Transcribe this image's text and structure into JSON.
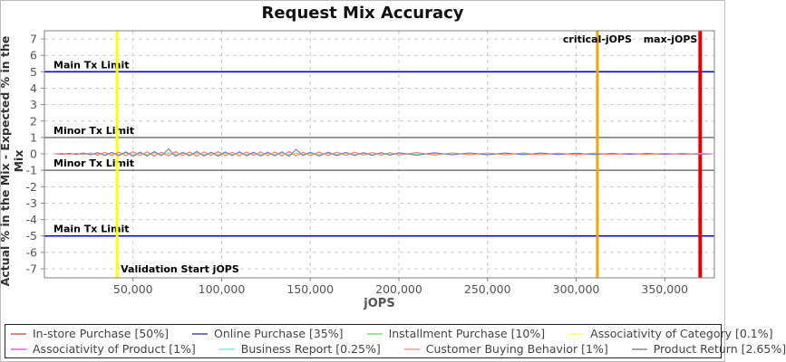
{
  "chart_data": {
    "type": "line",
    "title": "Request Mix Accuracy",
    "xlabel": "jOPS",
    "ylabel": "Actual % in the Mix - Expected % in the Mix",
    "xlim": [
      0,
      378000
    ],
    "ylim": [
      -7.55,
      7.5
    ],
    "grid": true,
    "legend_position": "bottom",
    "x_ticks": [
      {
        "value": 50000,
        "label": "50,000"
      },
      {
        "value": 100000,
        "label": "100,000"
      },
      {
        "value": 150000,
        "label": "150,000"
      },
      {
        "value": 200000,
        "label": "200,000"
      },
      {
        "value": 250000,
        "label": "250,000"
      },
      {
        "value": 300000,
        "label": "300,000"
      },
      {
        "value": 350000,
        "label": "350,000"
      }
    ],
    "y_ticks": [
      7,
      6,
      5,
      4,
      3,
      2,
      1,
      0,
      -1,
      -2,
      -3,
      -4,
      -5,
      -6,
      -7
    ],
    "h_markers": [
      {
        "label": "Main Tx Limit",
        "y": 5,
        "color": "#0000cc"
      },
      {
        "label": "Minor Tx Limit",
        "y": 1,
        "color": "#808080"
      },
      {
        "label": "Minor Tx Limit",
        "y": -1,
        "color": "#808080"
      },
      {
        "label": "Main Tx Limit",
        "y": -5,
        "color": "#0000cc"
      }
    ],
    "v_markers": [
      {
        "label": "Validation Start jOPS",
        "x": 41000,
        "color": "#ffff00",
        "width": 3,
        "label_pos": "bottom-right"
      },
      {
        "label": "critical-jOPS",
        "x": 312000,
        "color": "#e6ac00",
        "width": 3,
        "label_pos": "top-center"
      },
      {
        "label": "max-jOPS",
        "x": 370000,
        "color": "#dd0000",
        "width": 4,
        "label_pos": "top-left"
      }
    ],
    "x": [
      6000,
      10000,
      14000,
      18000,
      22000,
      26000,
      30000,
      34000,
      38000,
      42000,
      46000,
      50000,
      54000,
      58000,
      62000,
      66000,
      70000,
      74000,
      78000,
      82000,
      86000,
      90000,
      94000,
      98000,
      102000,
      106000,
      110000,
      114000,
      118000,
      122000,
      126000,
      130000,
      134000,
      138000,
      142000,
      146000,
      150000,
      155000,
      160000,
      165000,
      170000,
      175000,
      180000,
      185000,
      190000,
      195000,
      200000,
      210000,
      220000,
      230000,
      240000,
      250000,
      260000,
      270000,
      280000,
      290000,
      300000,
      310000,
      320000,
      330000,
      340000,
      350000,
      360000,
      370000,
      377000
    ],
    "series": [
      {
        "name": "In-store Purchase [50%]",
        "color": "#f08080",
        "values": [
          0,
          0.02,
          -0.03,
          0.03,
          -0.05,
          0.06,
          -0.08,
          0.1,
          -0.09,
          0.11,
          -0.12,
          0.14,
          -0.11,
          0.13,
          -0.14,
          0.11,
          -0.13,
          0.14,
          -0.1,
          0.12,
          -0.15,
          0.13,
          -0.1,
          0.14,
          -0.12,
          0.1,
          -0.13,
          0.12,
          -0.1,
          0.13,
          -0.11,
          0.12,
          -0.13,
          0.15,
          -0.12,
          0.1,
          -0.11,
          0.12,
          -0.1,
          0.11,
          -0.09,
          0.1,
          -0.08,
          0.09,
          -0.08,
          0.08,
          -0.07,
          0.08,
          -0.07,
          0.06,
          -0.06,
          0.06,
          -0.05,
          0.05,
          -0.05,
          0.04,
          -0.04,
          0.04,
          -0.03,
          0.03,
          -0.03,
          0.03,
          -0.02,
          0.02,
          0
        ]
      },
      {
        "name": "Online Purchase [35%]",
        "color": "#7575cf",
        "values": [
          0,
          -0.02,
          0.03,
          -0.03,
          0.05,
          -0.06,
          0.08,
          -0.1,
          0.09,
          -0.11,
          0.12,
          -0.14,
          0.11,
          -0.13,
          0.14,
          -0.11,
          0.3,
          -0.14,
          0.1,
          -0.12,
          0.15,
          -0.13,
          0.1,
          -0.14,
          0.12,
          -0.1,
          0.13,
          -0.12,
          0.1,
          -0.13,
          0.11,
          -0.12,
          0.13,
          -0.15,
          0.28,
          -0.1,
          0.11,
          -0.12,
          0.1,
          -0.11,
          0.09,
          -0.1,
          0.08,
          -0.09,
          0.08,
          -0.08,
          0.07,
          -0.08,
          0.07,
          -0.06,
          0.06,
          -0.06,
          0.05,
          -0.05,
          0.05,
          -0.04,
          0.04,
          -0.04,
          0.03,
          -0.03,
          0.03,
          -0.03,
          0.02,
          -0.02,
          0
        ]
      },
      {
        "name": "Installment Purchase [10%]",
        "color": "#90ee90",
        "values": [
          0,
          -0.01,
          0.02,
          -0.02,
          0.03,
          -0.03,
          0.04,
          -0.05,
          0.05,
          -0.06,
          0.06,
          -0.07,
          0.06,
          -0.07,
          0.07,
          -0.06,
          0.08,
          -0.07,
          0.05,
          -0.06,
          0.08,
          -0.07,
          0.05,
          -0.07,
          0.06,
          -0.05,
          0.07,
          -0.06,
          0.05,
          -0.07,
          0.06,
          -0.06,
          0.07,
          -0.08,
          0.06,
          -0.05,
          0.06,
          -0.06,
          0.05,
          -0.06,
          0.05,
          -0.05,
          0.04,
          -0.05,
          0.04,
          -0.04,
          0.04,
          -0.04,
          0.04,
          -0.03,
          0.03,
          -0.03,
          0.03,
          -0.03,
          0.03,
          -0.02,
          0.02,
          -0.02,
          0.02,
          -0.02,
          0.02,
          -0.02,
          0.01,
          -0.01,
          0
        ]
      },
      {
        "name": "Associativity of Category [0.1%]",
        "color": "#ffff88",
        "values": [
          0,
          0.01,
          -0.01,
          0.01,
          -0.02,
          0.02,
          -0.02,
          0.02,
          -0.02,
          0.02,
          -0.02,
          0.02,
          -0.02,
          0.02,
          -0.02,
          0.02,
          -0.02,
          0.02,
          -0.02,
          0.02,
          -0.02,
          0.02,
          -0.02,
          0.02,
          -0.02,
          0.02,
          -0.02,
          0.02,
          -0.02,
          0.02,
          -0.02,
          0.02,
          -0.02,
          0.02,
          -0.02,
          0.02,
          -0.02,
          0.02,
          -0.02,
          0.02,
          -0.02,
          0.02,
          -0.01,
          0.01,
          -0.01,
          0.01,
          -0.01,
          0.01,
          -0.01,
          0.01,
          -0.01,
          0.01,
          -0.01,
          0.01,
          -0.01,
          0.01,
          -0.01,
          0.01,
          -0.01,
          0.01,
          -0.01,
          0.01,
          -0.01,
          0.01,
          0
        ]
      },
      {
        "name": "Associativity of Product [1%]",
        "color": "#ee82ee",
        "values": [
          0,
          -0.01,
          0.01,
          -0.02,
          0.02,
          -0.03,
          0.03,
          -0.04,
          0.04,
          -0.04,
          0.05,
          -0.05,
          0.04,
          -0.05,
          0.05,
          -0.04,
          0.05,
          -0.05,
          0.04,
          -0.05,
          0.05,
          -0.05,
          0.04,
          -0.05,
          0.05,
          -0.04,
          0.05,
          -0.05,
          0.04,
          -0.05,
          0.04,
          -0.04,
          0.05,
          -0.05,
          0.04,
          -0.04,
          0.04,
          -0.04,
          0.04,
          -0.04,
          0.03,
          -0.04,
          0.03,
          -0.03,
          0.03,
          -0.03,
          0.03,
          -0.03,
          0.03,
          -0.02,
          0.02,
          -0.02,
          0.02,
          -0.02,
          0.02,
          -0.02,
          0.02,
          -0.02,
          0.01,
          -0.01,
          0.01,
          -0.01,
          0.01,
          -0.01,
          0
        ]
      },
      {
        "name": "Business Report [0.25%]",
        "color": "#8ff5f5",
        "values": [
          0,
          0.01,
          -0.01,
          0.02,
          -0.02,
          0.03,
          -0.03,
          0.03,
          -0.03,
          0.03,
          -0.03,
          0.03,
          -0.03,
          0.03,
          -0.03,
          0.03,
          -0.03,
          0.03,
          -0.03,
          0.03,
          -0.03,
          0.03,
          -0.03,
          0.03,
          -0.03,
          0.03,
          -0.03,
          0.03,
          -0.03,
          0.03,
          -0.03,
          0.03,
          -0.03,
          0.03,
          -0.03,
          0.03,
          -0.02,
          0.02,
          -0.02,
          0.02,
          -0.02,
          0.02,
          -0.02,
          0.02,
          -0.02,
          0.02,
          -0.02,
          0.02,
          -0.02,
          0.02,
          -0.02,
          0.02,
          -0.01,
          0.01,
          -0.01,
          0.01,
          -0.01,
          0.01,
          -0.01,
          0.01,
          -0.01,
          0.01,
          -0.01,
          0.01,
          0
        ]
      },
      {
        "name": "Customer Buying Behavior [1%]",
        "color": "#ffb3b3",
        "values": [
          0,
          0.02,
          -0.02,
          0.04,
          -0.04,
          0.06,
          -0.06,
          0.08,
          -0.07,
          0.09,
          -0.09,
          0.1,
          -0.08,
          0.1,
          -0.1,
          0.08,
          -0.1,
          0.1,
          -0.08,
          0.09,
          -0.1,
          0.09,
          -0.08,
          0.1,
          -0.09,
          0.08,
          -0.09,
          0.09,
          -0.08,
          0.09,
          -0.08,
          0.09,
          -0.09,
          0.1,
          -0.09,
          0.08,
          -0.08,
          0.09,
          -0.08,
          0.08,
          -0.07,
          0.08,
          -0.06,
          0.07,
          -0.06,
          0.06,
          -0.05,
          0.06,
          -0.05,
          0.05,
          -0.04,
          0.04,
          -0.04,
          0.04,
          -0.03,
          0.03,
          -0.03,
          0.03,
          -0.02,
          0.02,
          -0.02,
          0.02,
          -0.02,
          0.02,
          0
        ]
      },
      {
        "name": "Product Return [2.65%]",
        "color": "#a8a8a8",
        "values": [
          0,
          -0.01,
          0.02,
          -0.03,
          0.03,
          -0.04,
          0.05,
          -0.06,
          0.06,
          -0.06,
          0.07,
          -0.07,
          0.06,
          -0.07,
          0.07,
          -0.06,
          0.07,
          -0.07,
          0.06,
          -0.07,
          0.07,
          -0.06,
          0.06,
          -0.07,
          0.07,
          -0.06,
          0.07,
          -0.06,
          0.06,
          -0.07,
          0.06,
          -0.06,
          0.07,
          -0.07,
          0.06,
          -0.06,
          0.06,
          -0.06,
          0.05,
          -0.06,
          0.05,
          -0.05,
          0.05,
          -0.05,
          0.04,
          -0.04,
          0.04,
          -0.04,
          0.04,
          -0.03,
          0.03,
          -0.03,
          0.03,
          -0.03,
          0.02,
          -0.02,
          0.02,
          -0.02,
          0.02,
          -0.02,
          0.02,
          -0.01,
          0.01,
          -0.01,
          0
        ]
      }
    ],
    "style": {
      "plot_border_color": "#808080",
      "gridline_color": "#cccccc",
      "tick_label_color": "#555555",
      "marker_label_color": "#000000",
      "legend_text_color": "#444444"
    }
  }
}
